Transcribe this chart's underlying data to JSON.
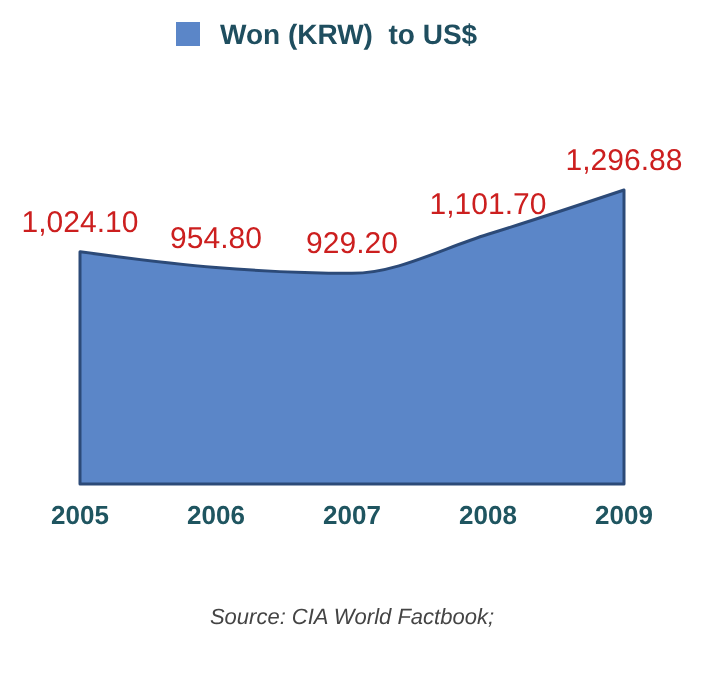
{
  "chart_data": {
    "type": "area",
    "categories": [
      "2005",
      "2006",
      "2007",
      "2008",
      "2009"
    ],
    "series": [
      {
        "name": "Won (KRW)  to US$",
        "color": "#5b86c8",
        "values": [
          1024.1,
          954.8,
          929.2,
          1101.7,
          1296.88
        ],
        "value_labels": [
          "1,024.10",
          "954.80",
          "929.20",
          "1,101.70",
          "1,296.88"
        ]
      }
    ],
    "legend": "top",
    "annotations": [
      "Source: CIA World Factbook;"
    ]
  }
}
